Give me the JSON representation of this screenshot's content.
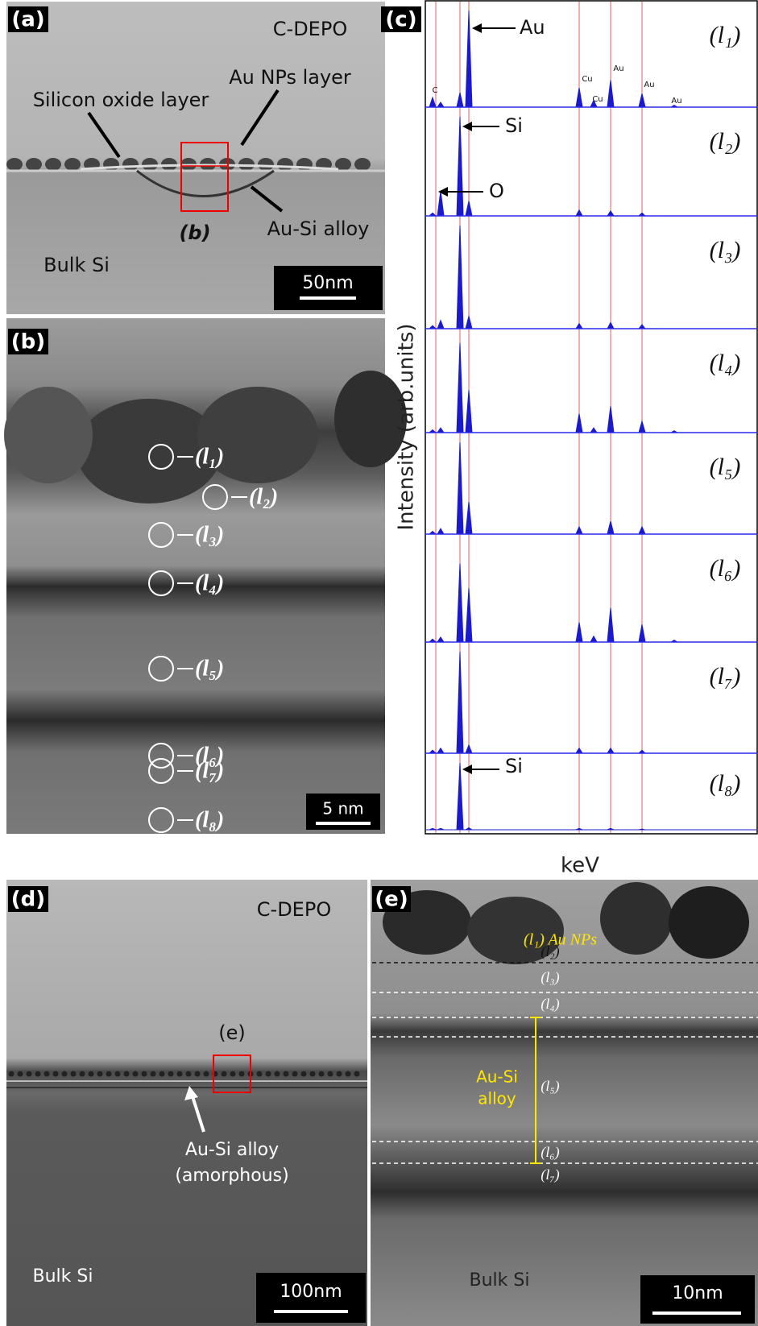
{
  "panel_a": {
    "label": "(a)",
    "cdepo": "C-DEPO",
    "au_nps_layer": "Au NPs layer",
    "silicon_oxide_layer": "Silicon oxide layer",
    "b_marker": "(b)",
    "au_si_alloy": "Au-Si alloy",
    "bulk_si": "Bulk Si",
    "scale_bar": "50nm"
  },
  "panel_b": {
    "label": "(b)",
    "points": [
      "(l₁)",
      "(l₂)",
      "(l₃)",
      "(l₄)",
      "(l₅)",
      "(l₆)",
      "(l₇)",
      "(l₈)"
    ],
    "scale_bar": "5 nm"
  },
  "panel_c": {
    "label": "(c)",
    "y_axis_label": "Intensity (arb.units)",
    "x_axis_label": "keV",
    "spectra": [
      "(l₁)",
      "(l₂)",
      "(l₃)",
      "(l₄)",
      "(l₅)",
      "(l₆)",
      "(l₇)",
      "(l₈)"
    ],
    "peak_labels": {
      "au": "Au",
      "si": "Si",
      "o": "O",
      "si_bottom": "Si",
      "c": "C",
      "cu1": "Cu",
      "cu2": "Cu",
      "au2": "Au",
      "au3": "Au",
      "au4": "Au"
    }
  },
  "panel_d": {
    "label": "(d)",
    "cdepo": "C-DEPO",
    "e_marker": "(e)",
    "au_si_alloy": "Au-Si alloy",
    "amorphous": "(amorphous)",
    "bulk_si": "Bulk Si",
    "scale_bar": "100nm"
  },
  "panel_e": {
    "label": "(e)",
    "au_nps": "(l₁) Au NPs",
    "layers": [
      "(l₂)",
      "(l₃)",
      "(l₄)",
      "(l₅)",
      "(l₆)",
      "(l₇)"
    ],
    "au_si": "Au-Si",
    "alloy": "alloy",
    "bulk_si": "Bulk Si",
    "scale_bar": "10nm"
  }
}
